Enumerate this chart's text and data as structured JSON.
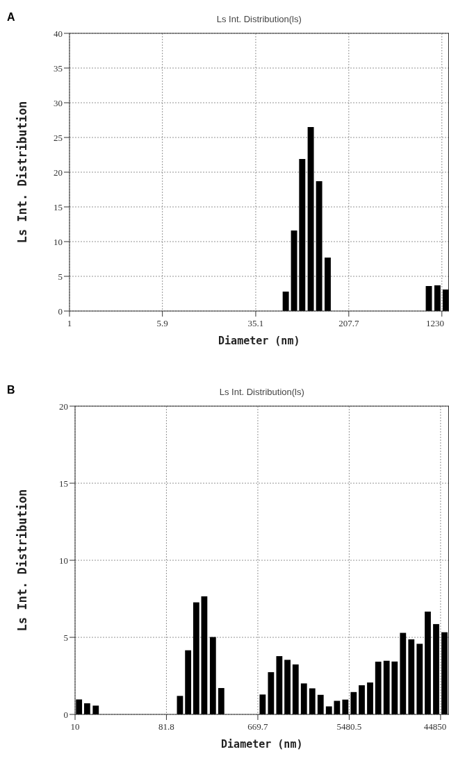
{
  "chart_data": [
    {
      "type": "bar",
      "title": "Ls Int. Distribution(ls)",
      "xlabel": "Diameter (nm)",
      "ylabel": "Ls Int. Distribution",
      "annotations": [
        "A"
      ],
      "log": "x",
      "grid": true,
      "color": "#000000",
      "x": [
        62.3,
        73.0,
        85.3,
        100.4,
        117.8,
        138.8,
        959,
        1130,
        1325
      ],
      "values": [
        2.8,
        11.6,
        21.9,
        26.5,
        18.7,
        7.7,
        3.6,
        3.7,
        3.1
      ],
      "xlim": [
        1,
        1400
      ],
      "xticks": [
        1,
        5.9,
        35.1,
        207.7,
        1230
      ],
      "ylim": [
        0,
        40
      ],
      "yticks": [
        0,
        5,
        10,
        15,
        20,
        25,
        30,
        35,
        40
      ]
    },
    {
      "type": "bar",
      "title": "Ls Int. Distribution(ls)",
      "xlabel": "Diameter (nm)",
      "ylabel": "Ls Int. Distribution",
      "annotations": [
        "B"
      ],
      "log": "x",
      "grid": true,
      "color": "#000000",
      "x": [
        10.95,
        13.2,
        16.1,
        111.7,
        134.7,
        162.4,
        195.4,
        238.3,
        288.7,
        748,
        906.6,
        1098,
        1324,
        1597,
        1934,
        2343,
        2838,
        3438,
        4140,
        5012,
        6072,
        7318,
        8866,
        10690,
        12950,
        15590,
        18890,
        22880,
        27720,
        33410,
        40480,
        49050
      ],
      "values": [
        0.97,
        0.72,
        0.57,
        1.2,
        4.16,
        7.27,
        7.66,
        5.02,
        1.71,
        1.29,
        2.74,
        3.78,
        3.54,
        3.24,
        2.01,
        1.69,
        1.27,
        0.52,
        0.88,
        0.96,
        1.45,
        1.89,
        2.07,
        3.42,
        3.48,
        3.43,
        5.29,
        4.87,
        4.58,
        6.67,
        5.86,
        5.33
      ],
      "xlim": [
        10,
        54000
      ],
      "xticks": [
        10,
        81.8,
        669.7,
        5480.5,
        44850
      ],
      "ylim": [
        0,
        20
      ],
      "yticks": [
        0,
        5,
        10,
        15,
        20
      ]
    }
  ]
}
